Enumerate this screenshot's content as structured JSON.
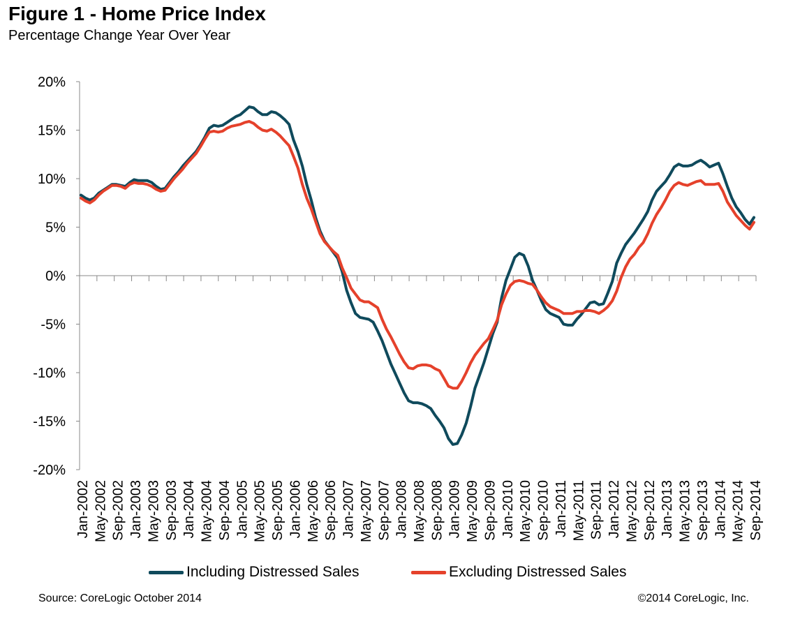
{
  "title": "Figure 1 - Home Price Index",
  "subtitle": "Percentage Change Year Over Year",
  "source": "Source: CoreLogic  October 2014",
  "copyright": "©2014 CoreLogic, Inc.",
  "chart_data": {
    "type": "line",
    "title": "Figure 1 - Home Price Index",
    "subtitle": "Percentage Change Year Over Year",
    "xlabel": "",
    "ylabel": "",
    "x_start": "Jan-2002",
    "x_end": "Sep-2014",
    "x_frequency": "monthly",
    "ylim": [
      -20,
      20
    ],
    "yticks": [
      20,
      15,
      10,
      5,
      0,
      -5,
      -10,
      -15,
      -20
    ],
    "ytick_labels": [
      "20%",
      "15%",
      "10%",
      "5%",
      "0%",
      "-5%",
      "-10%",
      "-15%",
      "-20%"
    ],
    "xtick_labels": [
      "Jan-2002",
      "May-2002",
      "Sep-2002",
      "Jan-2003",
      "May-2003",
      "Sep-2003",
      "Jan-2004",
      "May-2004",
      "Sep-2004",
      "Jan-2005",
      "May-2005",
      "Sep-2005",
      "Jan-2006",
      "May-2006",
      "Sep-2006",
      "Jan-2007",
      "May-2007",
      "Sep-2007",
      "Jan-2008",
      "May-2008",
      "Sep-2008",
      "Jan-2009",
      "May-2009",
      "Sep-2009",
      "Jan-2010",
      "May-2010",
      "Sep-2010",
      "Jan-2011",
      "May-2011",
      "Sep-2011",
      "Jan-2012",
      "May-2012",
      "Sep-2012",
      "Jan-2013",
      "May-2013",
      "Sep-2013",
      "Jan-2014",
      "May-2014",
      "Sep-2014"
    ],
    "grid": false,
    "legend_position": "bottom",
    "series": [
      {
        "name": "Including Distressed Sales",
        "color": "#0f4a5c",
        "values": [
          8.3,
          8.0,
          7.8,
          8.0,
          8.5,
          8.8,
          9.1,
          9.4,
          9.4,
          9.3,
          9.2,
          9.6,
          9.9,
          9.8,
          9.8,
          9.8,
          9.6,
          9.2,
          8.9,
          9.0,
          9.6,
          10.2,
          10.7,
          11.3,
          11.8,
          12.3,
          12.8,
          13.5,
          14.3,
          15.2,
          15.5,
          15.4,
          15.5,
          15.8,
          16.1,
          16.4,
          16.6,
          17.0,
          17.4,
          17.3,
          16.9,
          16.6,
          16.6,
          16.9,
          16.8,
          16.5,
          16.1,
          15.6,
          14.0,
          12.8,
          11.3,
          9.4,
          7.8,
          6.0,
          4.6,
          3.6,
          3.0,
          2.4,
          1.8,
          0.4,
          -1.5,
          -2.8,
          -3.9,
          -4.3,
          -4.4,
          -4.5,
          -4.8,
          -5.7,
          -6.7,
          -7.9,
          -9.1,
          -10.1,
          -11.1,
          -12.1,
          -12.9,
          -13.1,
          -13.1,
          -13.2,
          -13.4,
          -13.7,
          -14.4,
          -15.0,
          -15.7,
          -16.8,
          -17.4,
          -17.3,
          -16.4,
          -15.2,
          -13.5,
          -11.6,
          -10.3,
          -9.0,
          -7.5,
          -6.0,
          -4.8,
          -2.3,
          -0.5,
          0.7,
          1.9,
          2.3,
          2.1,
          1.0,
          -0.5,
          -1.5,
          -2.6,
          -3.5,
          -3.9,
          -4.1,
          -4.3,
          -5.0,
          -5.1,
          -5.1,
          -4.5,
          -4.0,
          -3.4,
          -2.8,
          -2.7,
          -3.0,
          -2.9,
          -1.8,
          -0.6,
          1.3,
          2.3,
          3.2,
          3.8,
          4.4,
          5.1,
          5.8,
          6.6,
          7.8,
          8.7,
          9.2,
          9.7,
          10.4,
          11.2,
          11.5,
          11.3,
          11.3,
          11.4,
          11.7,
          11.9,
          11.6,
          11.2,
          11.4,
          11.6,
          10.5,
          9.2,
          8.0,
          7.1,
          6.5,
          5.8,
          5.3,
          6.0
        ]
      },
      {
        "name": "Excluding Distressed Sales",
        "color": "#e5412b",
        "values": [
          8.0,
          7.7,
          7.5,
          7.8,
          8.3,
          8.7,
          9.0,
          9.3,
          9.3,
          9.2,
          9.0,
          9.4,
          9.6,
          9.5,
          9.5,
          9.4,
          9.2,
          8.9,
          8.7,
          8.8,
          9.4,
          10.0,
          10.5,
          11.0,
          11.6,
          12.1,
          12.6,
          13.3,
          14.1,
          14.8,
          14.9,
          14.8,
          14.9,
          15.2,
          15.4,
          15.5,
          15.6,
          15.8,
          15.9,
          15.7,
          15.3,
          15.0,
          14.9,
          15.1,
          14.8,
          14.4,
          13.9,
          13.4,
          12.3,
          11.1,
          9.4,
          8.0,
          6.9,
          5.6,
          4.3,
          3.5,
          3.0,
          2.5,
          2.1,
          0.8,
          -0.2,
          -1.3,
          -1.9,
          -2.5,
          -2.7,
          -2.7,
          -3.0,
          -3.3,
          -4.5,
          -5.5,
          -6.3,
          -7.2,
          -8.1,
          -8.9,
          -9.5,
          -9.6,
          -9.3,
          -9.2,
          -9.2,
          -9.3,
          -9.6,
          -9.8,
          -10.6,
          -11.4,
          -11.6,
          -11.6,
          -10.9,
          -10.0,
          -9.0,
          -8.2,
          -7.6,
          -7.0,
          -6.5,
          -5.6,
          -4.6,
          -3.0,
          -1.9,
          -1.0,
          -0.6,
          -0.5,
          -0.6,
          -0.8,
          -0.9,
          -1.5,
          -2.2,
          -2.8,
          -3.2,
          -3.4,
          -3.6,
          -3.9,
          -3.9,
          -3.9,
          -3.7,
          -3.7,
          -3.6,
          -3.6,
          -3.7,
          -3.9,
          -3.6,
          -3.2,
          -2.6,
          -1.6,
          -0.2,
          0.9,
          1.7,
          2.2,
          2.9,
          3.4,
          4.3,
          5.4,
          6.3,
          7.0,
          7.8,
          8.7,
          9.3,
          9.6,
          9.4,
          9.3,
          9.5,
          9.7,
          9.8,
          9.4,
          9.4,
          9.4,
          9.5,
          8.7,
          7.6,
          6.9,
          6.2,
          5.7,
          5.2,
          4.8,
          5.5
        ]
      }
    ]
  }
}
